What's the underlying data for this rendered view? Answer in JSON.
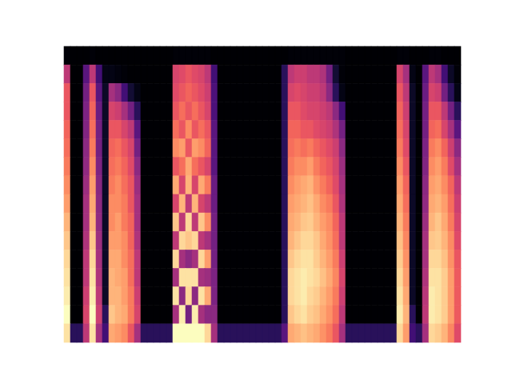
{
  "chart_data": {
    "type": "heatmap",
    "color": "magma",
    "tick_labels": false,
    "cells": [
      [
        3,
        2,
        2,
        2,
        3,
        2,
        2,
        2,
        2,
        2,
        2,
        2,
        2,
        2,
        2,
        2,
        2,
        3,
        3,
        3,
        3,
        3,
        3,
        2,
        2,
        2,
        2,
        2,
        2,
        2,
        2,
        2,
        2,
        2,
        2,
        3,
        3,
        3,
        3,
        3,
        3,
        3,
        3,
        3,
        2,
        2,
        2,
        2,
        2,
        2,
        2,
        2,
        3,
        3,
        2,
        2,
        2,
        3,
        3,
        2,
        2,
        2
      ],
      [
        45,
        2,
        2,
        25,
        45,
        20,
        5,
        5,
        4,
        3,
        2,
        2,
        2,
        2,
        2,
        2,
        2,
        50,
        52,
        55,
        52,
        50,
        45,
        20,
        2,
        2,
        2,
        2,
        2,
        2,
        2,
        2,
        2,
        2,
        15,
        45,
        48,
        48,
        45,
        45,
        42,
        30,
        10,
        3,
        2,
        2,
        2,
        2,
        2,
        2,
        2,
        2,
        50,
        40,
        5,
        2,
        25,
        45,
        40,
        20,
        8,
        3
      ],
      [
        55,
        2,
        2,
        30,
        55,
        25,
        8,
        40,
        35,
        20,
        10,
        5,
        2,
        2,
        2,
        2,
        2,
        52,
        55,
        58,
        55,
        52,
        48,
        22,
        2,
        2,
        2,
        2,
        2,
        2,
        2,
        2,
        2,
        2,
        15,
        50,
        52,
        50,
        48,
        48,
        45,
        35,
        15,
        5,
        2,
        2,
        2,
        2,
        2,
        2,
        2,
        2,
        55,
        45,
        8,
        2,
        28,
        50,
        48,
        30,
        15,
        5
      ],
      [
        55,
        2,
        2,
        32,
        58,
        28,
        8,
        50,
        48,
        40,
        30,
        15,
        2,
        2,
        2,
        2,
        2,
        55,
        60,
        55,
        60,
        55,
        50,
        22,
        2,
        2,
        2,
        2,
        2,
        2,
        2,
        2,
        2,
        2,
        15,
        55,
        55,
        52,
        50,
        50,
        48,
        45,
        35,
        20,
        2,
        2,
        2,
        2,
        2,
        2,
        2,
        2,
        58,
        48,
        8,
        2,
        30,
        55,
        55,
        45,
        30,
        15
      ],
      [
        58,
        2,
        2,
        33,
        60,
        30,
        8,
        55,
        55,
        50,
        45,
        25,
        2,
        2,
        2,
        2,
        2,
        60,
        55,
        65,
        55,
        60,
        55,
        25,
        2,
        2,
        2,
        2,
        2,
        2,
        2,
        2,
        2,
        2,
        15,
        58,
        58,
        55,
        55,
        52,
        50,
        48,
        42,
        30,
        2,
        2,
        2,
        2,
        2,
        2,
        2,
        2,
        60,
        50,
        8,
        2,
        30,
        58,
        60,
        50,
        40,
        25
      ],
      [
        60,
        2,
        2,
        35,
        62,
        30,
        8,
        58,
        60,
        55,
        50,
        30,
        2,
        2,
        2,
        2,
        2,
        65,
        68,
        55,
        68,
        65,
        58,
        25,
        2,
        2,
        2,
        2,
        2,
        2,
        2,
        2,
        2,
        2,
        15,
        60,
        62,
        60,
        62,
        58,
        55,
        52,
        48,
        35,
        2,
        2,
        2,
        2,
        2,
        2,
        2,
        2,
        62,
        52,
        8,
        2,
        32,
        62,
        65,
        58,
        48,
        35
      ],
      [
        62,
        2,
        2,
        36,
        65,
        32,
        8,
        60,
        62,
        58,
        52,
        35,
        2,
        2,
        2,
        2,
        2,
        55,
        60,
        70,
        60,
        55,
        50,
        25,
        2,
        2,
        2,
        2,
        2,
        2,
        2,
        2,
        2,
        2,
        15,
        62,
        65,
        65,
        68,
        62,
        58,
        55,
        50,
        38,
        2,
        2,
        2,
        2,
        2,
        2,
        2,
        2,
        65,
        55,
        8,
        2,
        33,
        65,
        68,
        62,
        52,
        40
      ],
      [
        65,
        2,
        2,
        38,
        68,
        34,
        8,
        62,
        65,
        60,
        55,
        38,
        2,
        2,
        2,
        2,
        2,
        70,
        50,
        72,
        50,
        70,
        62,
        28,
        2,
        2,
        2,
        2,
        2,
        2,
        2,
        2,
        2,
        2,
        15,
        65,
        68,
        70,
        72,
        66,
        62,
        58,
        52,
        40,
        2,
        2,
        2,
        2,
        2,
        2,
        2,
        2,
        68,
        58,
        8,
        2,
        35,
        68,
        70,
        65,
        58,
        45
      ],
      [
        68,
        2,
        2,
        40,
        70,
        35,
        8,
        65,
        65,
        62,
        55,
        40,
        2,
        2,
        2,
        2,
        2,
        50,
        72,
        45,
        72,
        50,
        45,
        28,
        2,
        2,
        2,
        2,
        2,
        2,
        2,
        2,
        2,
        2,
        15,
        68,
        70,
        72,
        74,
        70,
        65,
        62,
        55,
        42,
        2,
        2,
        2,
        2,
        2,
        2,
        2,
        2,
        70,
        60,
        8,
        2,
        36,
        70,
        72,
        68,
        60,
        48
      ],
      [
        72,
        2,
        2,
        40,
        72,
        36,
        8,
        65,
        68,
        62,
        58,
        40,
        2,
        2,
        2,
        2,
        2,
        75,
        45,
        78,
        45,
        75,
        65,
        30,
        2,
        2,
        2,
        2,
        2,
        2,
        2,
        2,
        2,
        2,
        15,
        70,
        72,
        75,
        76,
        72,
        68,
        65,
        58,
        45,
        2,
        2,
        2,
        2,
        2,
        2,
        2,
        2,
        72,
        62,
        8,
        2,
        38,
        72,
        75,
        70,
        62,
        50
      ],
      [
        75,
        2,
        2,
        42,
        75,
        38,
        8,
        68,
        68,
        65,
        58,
        42,
        2,
        2,
        2,
        2,
        2,
        45,
        78,
        75,
        78,
        45,
        40,
        30,
        2,
        2,
        2,
        2,
        2,
        2,
        2,
        2,
        2,
        2,
        15,
        72,
        75,
        78,
        78,
        75,
        70,
        66,
        60,
        45,
        2,
        2,
        2,
        2,
        2,
        2,
        2,
        2,
        74,
        64,
        8,
        2,
        40,
        75,
        76,
        72,
        65,
        52
      ],
      [
        78,
        2,
        2,
        45,
        78,
        40,
        8,
        70,
        70,
        65,
        60,
        45,
        2,
        2,
        2,
        2,
        2,
        78,
        40,
        35,
        40,
        78,
        68,
        30,
        2,
        2,
        2,
        2,
        2,
        2,
        2,
        2,
        2,
        2,
        15,
        75,
        78,
        80,
        80,
        76,
        72,
        68,
        62,
        48,
        2,
        2,
        2,
        2,
        2,
        2,
        2,
        2,
        76,
        66,
        8,
        2,
        40,
        78,
        78,
        74,
        66,
        55
      ],
      [
        80,
        2,
        2,
        45,
        80,
        42,
        8,
        72,
        70,
        68,
        60,
        45,
        2,
        2,
        2,
        2,
        2,
        40,
        80,
        80,
        80,
        40,
        38,
        32,
        2,
        2,
        2,
        2,
        2,
        2,
        2,
        2,
        2,
        2,
        15,
        78,
        80,
        82,
        80,
        78,
        74,
        70,
        64,
        50,
        2,
        2,
        2,
        2,
        2,
        2,
        2,
        2,
        78,
        68,
        8,
        2,
        42,
        80,
        80,
        76,
        68,
        56
      ],
      [
        82,
        2,
        2,
        48,
        82,
        45,
        8,
        72,
        72,
        68,
        62,
        48,
        2,
        2,
        2,
        2,
        2,
        80,
        35,
        78,
        35,
        80,
        70,
        32,
        2,
        2,
        2,
        2,
        2,
        2,
        2,
        2,
        2,
        2,
        15,
        78,
        80,
        82,
        78,
        76,
        72,
        68,
        62,
        48,
        2,
        2,
        2,
        2,
        2,
        2,
        2,
        2,
        80,
        70,
        8,
        2,
        44,
        82,
        80,
        76,
        68,
        56
      ],
      [
        85,
        2,
        2,
        50,
        85,
        48,
        15,
        75,
        72,
        70,
        62,
        50,
        2,
        2,
        2,
        2,
        2,
        40,
        82,
        30,
        82,
        40,
        35,
        35,
        2,
        2,
        2,
        2,
        2,
        2,
        2,
        2,
        2,
        2,
        15,
        75,
        78,
        80,
        76,
        74,
        70,
        66,
        60,
        45,
        2,
        2,
        2,
        2,
        2,
        2,
        2,
        2,
        82,
        72,
        15,
        2,
        45,
        82,
        80,
        76,
        68,
        56
      ],
      [
        80,
        15,
        15,
        45,
        80,
        40,
        20,
        70,
        68,
        65,
        55,
        40,
        15,
        15,
        15,
        15,
        15,
        85,
        85,
        85,
        85,
        85,
        78,
        40,
        15,
        15,
        15,
        15,
        15,
        15,
        15,
        15,
        15,
        15,
        25,
        70,
        72,
        74,
        72,
        70,
        66,
        62,
        55,
        40,
        15,
        15,
        15,
        15,
        15,
        15,
        15,
        15,
        78,
        68,
        20,
        15,
        40,
        78,
        76,
        72,
        64,
        52
      ]
    ]
  }
}
